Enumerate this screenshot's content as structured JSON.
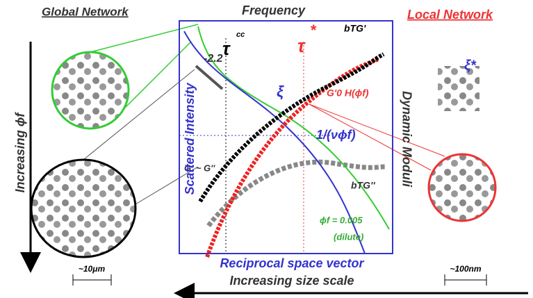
{
  "header": {
    "left": "Global Network",
    "center": "Frequency",
    "right": "Local Network"
  },
  "left_axis": "Increasing ϕf",
  "markers": {
    "tau_cc_sup": "cc",
    "tau_cc": "τ",
    "tau_star": "τ",
    "star": "*"
  },
  "labels": {
    "bt_g1": "bTG'",
    "slope": "-2.2",
    "xi": "ξ",
    "g0h": "G'0 H(ϕf)",
    "inverse": "1/(νϕf)",
    "crossover": "G' ~ G''",
    "bt_g2": "bTG''",
    "phi": "ϕf = 0.005",
    "dilute": "(dilute)",
    "xi_star": "ξ*"
  },
  "axes": {
    "y_left": "Scattered Intensity",
    "y_right": "Dynamic Moduli",
    "x_bottom": "Reciprocal space vector"
  },
  "footer": {
    "arrow": "Increasing size scale",
    "scale_left": "~10μm",
    "scale_right": "~100nm"
  }
}
